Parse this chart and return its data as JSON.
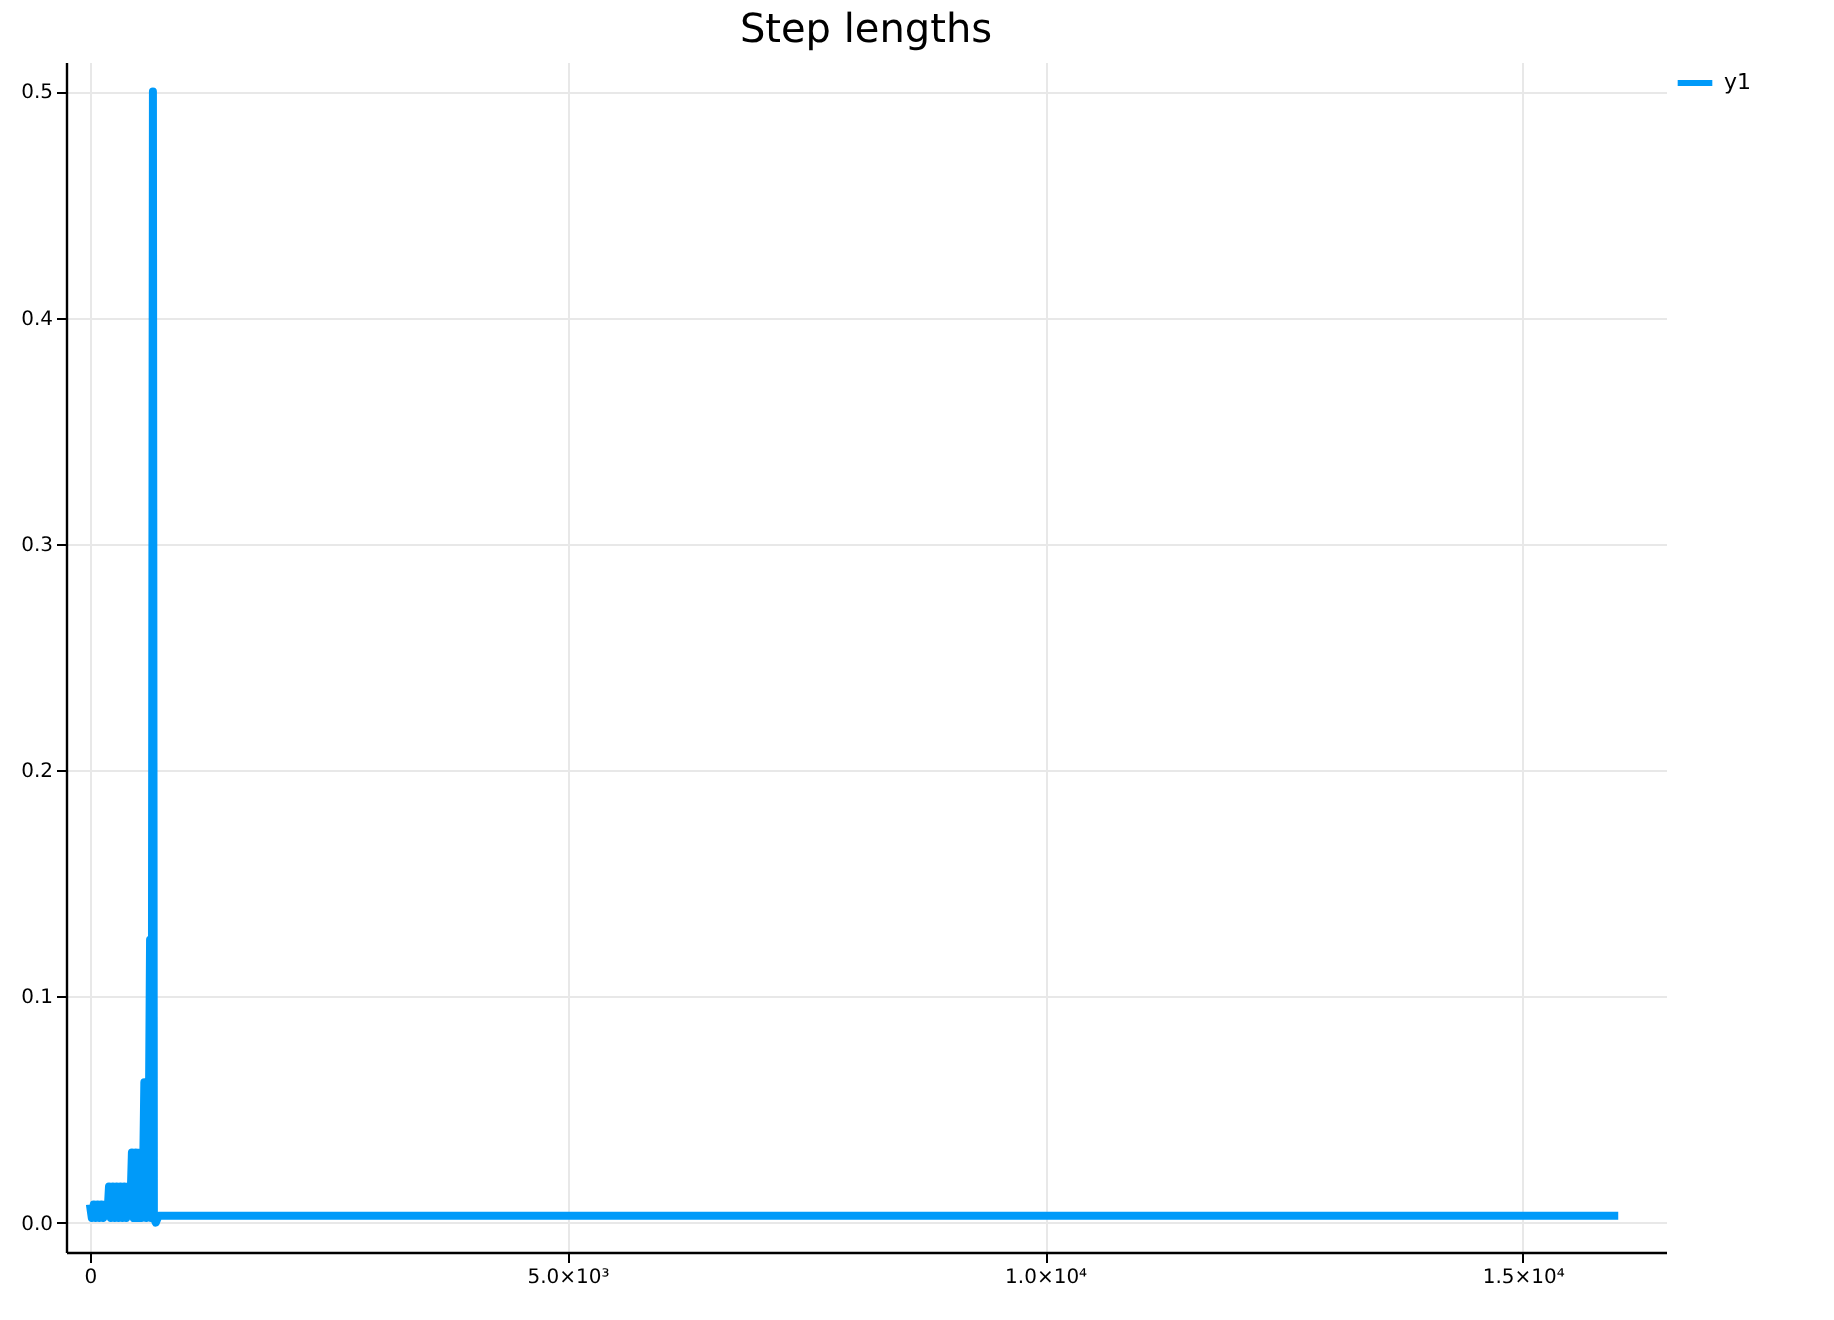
{
  "chart_data": {
    "type": "line",
    "title": "Step lengths",
    "x": [
      0,
      20,
      40,
      60,
      80,
      100,
      120,
      140,
      160,
      190,
      200,
      220,
      240,
      260,
      280,
      300,
      320,
      340,
      360,
      380,
      400,
      430,
      440,
      460,
      480,
      500,
      520,
      540,
      560,
      570,
      590,
      610,
      620,
      630,
      640,
      650,
      660,
      670,
      690,
      720,
      2000,
      4000,
      6000,
      8000,
      10000,
      12000,
      14000,
      16000
    ],
    "series": [
      {
        "name": "y1",
        "color": "#009af9",
        "values": [
          0.008,
          0.002,
          0.008,
          0.002,
          0.008,
          0.002,
          0.008,
          0.002,
          0.008,
          0.008,
          0.016,
          0.002,
          0.016,
          0.002,
          0.016,
          0.002,
          0.016,
          0.002,
          0.016,
          0.002,
          0.016,
          0.016,
          0.031,
          0.002,
          0.031,
          0.002,
          0.031,
          0.002,
          0.031,
          0.062,
          0.002,
          0.062,
          0.062,
          0.125,
          0.002,
          0.125,
          0.5,
          0.002,
          0.0,
          0.003,
          0.003,
          0.003,
          0.003,
          0.003,
          0.003,
          0.003,
          0.003,
          0.003
        ]
      }
    ],
    "xlim": [
      -250,
      16500
    ],
    "ylim": [
      -0.013,
      0.513
    ],
    "xticks": [
      {
        "value": 0,
        "label": "0"
      },
      {
        "value": 5000,
        "label": "5.0×10³"
      },
      {
        "value": 10000,
        "label": "1.0×10⁴"
      },
      {
        "value": 15000,
        "label": "1.5×10⁴"
      }
    ],
    "yticks": [
      {
        "value": 0,
        "label": "0.0"
      },
      {
        "value": 0.1,
        "label": "0.1"
      },
      {
        "value": 0.2,
        "label": "0.2"
      },
      {
        "value": 0.3,
        "label": "0.3"
      },
      {
        "value": 0.4,
        "label": "0.4"
      },
      {
        "value": 0.5,
        "label": "0.5"
      }
    ],
    "grid": true,
    "legend": "top right",
    "line_style": "solid",
    "marker": "none"
  }
}
